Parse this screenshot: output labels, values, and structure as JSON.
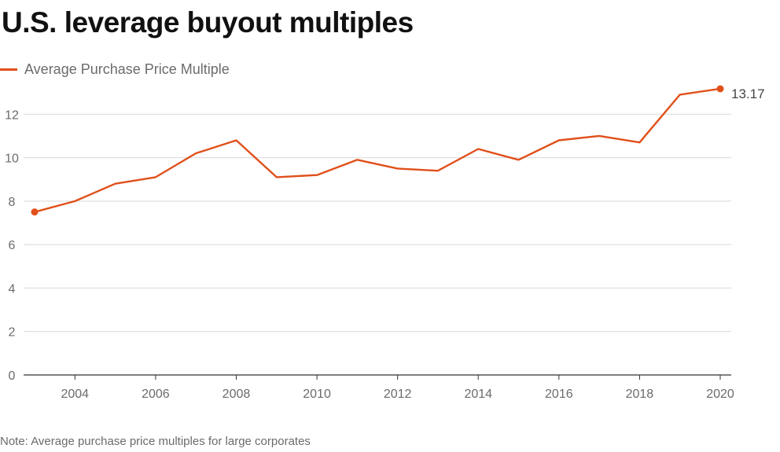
{
  "colors": {
    "series": "#e0501b",
    "grid": "#d9d9d9",
    "axis": "#333333",
    "text_muted": "#6b6b6b"
  },
  "chart_data": {
    "type": "line",
    "title": "U.S. leverage buyout multiples",
    "note": "Note: Average purchase price multiples for large corporates",
    "xlabel": "",
    "ylabel": "",
    "grid": true,
    "legend_placement": "top-left",
    "xlim": [
      2003,
      2020
    ],
    "ylim": [
      0,
      14
    ],
    "y_ticks": [
      0,
      2,
      4,
      6,
      8,
      10,
      12
    ],
    "x_ticks": [
      2004,
      2006,
      2008,
      2010,
      2012,
      2014,
      2016,
      2018,
      2020
    ],
    "series": [
      {
        "name": "Average Purchase Price Multiple",
        "x": [
          2003,
          2004,
          2005,
          2006,
          2007,
          2008,
          2009,
          2010,
          2011,
          2012,
          2013,
          2014,
          2015,
          2016,
          2017,
          2018,
          2019,
          2020
        ],
        "values": [
          7.5,
          8.0,
          8.8,
          9.1,
          10.2,
          10.8,
          9.1,
          9.2,
          9.9,
          9.5,
          9.4,
          10.4,
          9.9,
          10.8,
          11.0,
          10.7,
          12.9,
          13.17
        ]
      }
    ],
    "annotations": [
      {
        "x": 2020,
        "y": 13.17,
        "text": "13.17"
      }
    ]
  }
}
